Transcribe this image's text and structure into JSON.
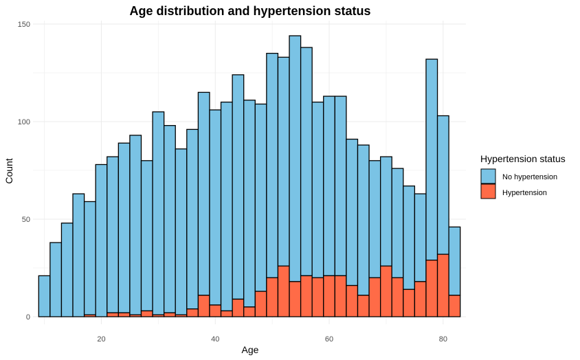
{
  "chart_data": {
    "type": "bar",
    "subtype": "stacked-histogram",
    "title": "Age distribution and hypertension status",
    "xlabel": "Age",
    "ylabel": "Count",
    "xlim": [
      8,
      84
    ],
    "ylim": [
      0,
      150
    ],
    "x_ticks": [
      20,
      40,
      60,
      80
    ],
    "y_ticks": [
      0,
      50,
      100,
      150
    ],
    "grid": true,
    "legend_position": "right",
    "legend_title": "Hypertension status",
    "bin_start": 9,
    "bin_width": 2,
    "series": [
      {
        "name": "No hypertension",
        "color": "#7AC3E5",
        "totals": [
          21,
          38,
          48,
          63,
          59,
          78,
          82,
          89,
          93,
          80,
          105,
          98,
          86,
          96,
          115,
          106,
          110,
          124,
          111,
          109,
          135,
          133,
          144,
          138,
          110,
          113,
          113,
          91,
          88,
          80,
          82,
          76,
          67,
          63,
          132,
          103,
          46
        ]
      },
      {
        "name": "Hypertension",
        "color": "#FF6B47",
        "values": [
          0,
          0,
          0,
          0,
          1,
          0,
          2,
          2,
          1,
          3,
          1,
          2,
          1,
          4,
          11,
          6,
          3,
          9,
          5,
          13,
          20,
          26,
          18,
          21,
          20,
          21,
          21,
          16,
          11,
          20,
          26,
          20,
          14,
          18,
          29,
          32,
          11
        ]
      }
    ]
  }
}
